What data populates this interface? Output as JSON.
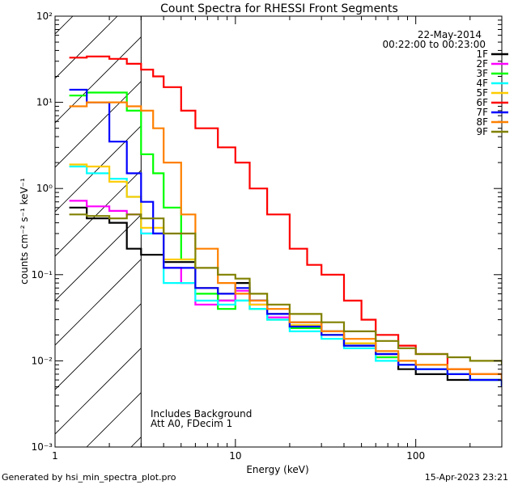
{
  "chart_data": {
    "type": "line",
    "title": "Count Spectra for RHESSI Front Segments",
    "xlabel": "Energy (keV)",
    "ylabel": "counts cm⁻² s⁻¹ keV⁻¹",
    "xscale": "log",
    "yscale": "log",
    "xlim": [
      1,
      300
    ],
    "ylim": [
      0.001,
      100
    ],
    "x_ticks": [
      {
        "value": 1,
        "label": "1"
      },
      {
        "value": 10,
        "label": "10"
      },
      {
        "value": 100,
        "label": "100"
      }
    ],
    "y_ticks": [
      {
        "value": 0.001,
        "label": "10⁻³"
      },
      {
        "value": 0.01,
        "label": "10⁻²"
      },
      {
        "value": 0.1,
        "label": "10⁻¹"
      },
      {
        "value": 1,
        "label": "10⁰"
      },
      {
        "value": 10,
        "label": "10¹"
      },
      {
        "value": 100,
        "label": "10²"
      }
    ],
    "date": "22-May-2014",
    "time_range": "00:22:00 to 00:23:00",
    "shaded_region_keV": [
      1,
      3
    ],
    "annotations": [
      "Includes Background",
      "Att A0, FDecim 1"
    ],
    "legend_position": "top-right",
    "series": [
      {
        "name": "1F",
        "color": "#000000",
        "points": [
          [
            1.2,
            0.6
          ],
          [
            1.5,
            0.45
          ],
          [
            2.0,
            0.4
          ],
          [
            2.5,
            0.2
          ],
          [
            3.0,
            0.17
          ],
          [
            4,
            0.14
          ],
          [
            6,
            0.07
          ],
          [
            8,
            0.05
          ],
          [
            10,
            0.08
          ],
          [
            12,
            0.05
          ],
          [
            15,
            0.035
          ],
          [
            20,
            0.028
          ],
          [
            30,
            0.022
          ],
          [
            40,
            0.016
          ],
          [
            60,
            0.012
          ],
          [
            80,
            0.008
          ],
          [
            100,
            0.007
          ],
          [
            150,
            0.006
          ],
          [
            200,
            0.006
          ],
          [
            300,
            0.005
          ]
        ]
      },
      {
        "name": "2F",
        "color": "#ff00ff",
        "points": [
          [
            1.2,
            0.72
          ],
          [
            1.5,
            0.62
          ],
          [
            2.0,
            0.55
          ],
          [
            2.5,
            0.5
          ],
          [
            3.0,
            0.3
          ],
          [
            4,
            0.12
          ],
          [
            5,
            0.08
          ],
          [
            6,
            0.045
          ],
          [
            8,
            0.05
          ],
          [
            10,
            0.065
          ],
          [
            12,
            0.045
          ],
          [
            15,
            0.032
          ],
          [
            20,
            0.025
          ],
          [
            30,
            0.02
          ],
          [
            40,
            0.015
          ],
          [
            60,
            0.011
          ],
          [
            80,
            0.009
          ],
          [
            100,
            0.008
          ],
          [
            150,
            0.007
          ],
          [
            200,
            0.006
          ],
          [
            300,
            0.005
          ]
        ]
      },
      {
        "name": "3F",
        "color": "#00ff00",
        "points": [
          [
            1.2,
            12
          ],
          [
            1.5,
            13
          ],
          [
            2.0,
            13
          ],
          [
            2.5,
            8
          ],
          [
            3.0,
            2.5
          ],
          [
            3.5,
            1.5
          ],
          [
            4,
            0.6
          ],
          [
            5,
            0.15
          ],
          [
            6,
            0.06
          ],
          [
            8,
            0.04
          ],
          [
            10,
            0.05
          ],
          [
            12,
            0.04
          ],
          [
            15,
            0.03
          ],
          [
            20,
            0.024
          ],
          [
            30,
            0.02
          ],
          [
            40,
            0.015
          ],
          [
            60,
            0.011
          ],
          [
            80,
            0.009
          ],
          [
            100,
            0.008
          ],
          [
            150,
            0.007
          ],
          [
            200,
            0.006
          ],
          [
            300,
            0.005
          ]
        ]
      },
      {
        "name": "4F",
        "color": "#00ffff",
        "points": [
          [
            1.2,
            1.8
          ],
          [
            1.5,
            1.5
          ],
          [
            2.0,
            1.3
          ],
          [
            2.5,
            0.8
          ],
          [
            3.0,
            0.3
          ],
          [
            4,
            0.08
          ],
          [
            6,
            0.05
          ],
          [
            8,
            0.045
          ],
          [
            10,
            0.05
          ],
          [
            12,
            0.04
          ],
          [
            15,
            0.03
          ],
          [
            20,
            0.022
          ],
          [
            30,
            0.018
          ],
          [
            40,
            0.014
          ],
          [
            60,
            0.01
          ],
          [
            80,
            0.009
          ],
          [
            100,
            0.008
          ],
          [
            150,
            0.007
          ],
          [
            200,
            0.006
          ],
          [
            300,
            0.005
          ]
        ]
      },
      {
        "name": "5F",
        "color": "#ffcc00",
        "points": [
          [
            1.2,
            1.9
          ],
          [
            1.5,
            1.8
          ],
          [
            2.0,
            1.2
          ],
          [
            2.5,
            0.8
          ],
          [
            3.0,
            0.35
          ],
          [
            4,
            0.15
          ],
          [
            6,
            0.07
          ],
          [
            8,
            0.06
          ],
          [
            10,
            0.06
          ],
          [
            12,
            0.045
          ],
          [
            15,
            0.035
          ],
          [
            20,
            0.026
          ],
          [
            30,
            0.02
          ],
          [
            40,
            0.016
          ],
          [
            60,
            0.012
          ],
          [
            80,
            0.01
          ],
          [
            100,
            0.009
          ],
          [
            150,
            0.008
          ],
          [
            200,
            0.007
          ],
          [
            300,
            0.006
          ]
        ]
      },
      {
        "name": "6F",
        "color": "#ff0000",
        "points": [
          [
            1.2,
            33
          ],
          [
            1.5,
            34
          ],
          [
            2.0,
            32
          ],
          [
            2.5,
            28
          ],
          [
            3.0,
            24
          ],
          [
            3.5,
            20
          ],
          [
            4,
            15
          ],
          [
            5,
            8
          ],
          [
            6,
            5
          ],
          [
            8,
            3
          ],
          [
            10,
            2
          ],
          [
            12,
            1
          ],
          [
            15,
            0.5
          ],
          [
            20,
            0.2
          ],
          [
            25,
            0.13
          ],
          [
            30,
            0.1
          ],
          [
            40,
            0.05
          ],
          [
            50,
            0.03
          ],
          [
            60,
            0.02
          ],
          [
            80,
            0.015
          ],
          [
            100,
            0.012
          ],
          [
            150,
            0.008
          ],
          [
            200,
            0.007
          ],
          [
            300,
            0.006
          ]
        ]
      },
      {
        "name": "7F",
        "color": "#0000ff",
        "points": [
          [
            1.2,
            14
          ],
          [
            1.5,
            10
          ],
          [
            2.0,
            3.5
          ],
          [
            2.5,
            1.5
          ],
          [
            3.0,
            0.7
          ],
          [
            3.5,
            0.3
          ],
          [
            4,
            0.12
          ],
          [
            6,
            0.07
          ],
          [
            8,
            0.06
          ],
          [
            10,
            0.07
          ],
          [
            12,
            0.05
          ],
          [
            15,
            0.035
          ],
          [
            20,
            0.025
          ],
          [
            30,
            0.02
          ],
          [
            40,
            0.015
          ],
          [
            60,
            0.012
          ],
          [
            80,
            0.009
          ],
          [
            100,
            0.008
          ],
          [
            150,
            0.007
          ],
          [
            200,
            0.006
          ],
          [
            300,
            0.005
          ]
        ]
      },
      {
        "name": "8F",
        "color": "#ff8000",
        "points": [
          [
            1.2,
            9
          ],
          [
            1.5,
            10
          ],
          [
            2.0,
            10
          ],
          [
            2.5,
            9
          ],
          [
            3.0,
            8
          ],
          [
            3.5,
            5
          ],
          [
            4,
            2
          ],
          [
            5,
            0.5
          ],
          [
            6,
            0.2
          ],
          [
            8,
            0.08
          ],
          [
            10,
            0.06
          ],
          [
            12,
            0.05
          ],
          [
            15,
            0.04
          ],
          [
            20,
            0.028
          ],
          [
            30,
            0.022
          ],
          [
            40,
            0.018
          ],
          [
            60,
            0.013
          ],
          [
            80,
            0.01
          ],
          [
            100,
            0.009
          ],
          [
            150,
            0.008
          ],
          [
            200,
            0.007
          ],
          [
            300,
            0.006
          ]
        ]
      },
      {
        "name": "9F",
        "color": "#808000",
        "points": [
          [
            1.2,
            0.5
          ],
          [
            1.5,
            0.48
          ],
          [
            2.0,
            0.45
          ],
          [
            2.5,
            0.5
          ],
          [
            3.0,
            0.45
          ],
          [
            4,
            0.3
          ],
          [
            6,
            0.12
          ],
          [
            8,
            0.1
          ],
          [
            10,
            0.09
          ],
          [
            12,
            0.06
          ],
          [
            15,
            0.045
          ],
          [
            20,
            0.035
          ],
          [
            30,
            0.028
          ],
          [
            40,
            0.022
          ],
          [
            60,
            0.017
          ],
          [
            80,
            0.014
          ],
          [
            100,
            0.012
          ],
          [
            150,
            0.011
          ],
          [
            200,
            0.01
          ],
          [
            300,
            0.009
          ]
        ]
      }
    ]
  },
  "footer": {
    "generated": "Generated by hsi_min_spectra_plot.pro",
    "timestamp": "15-Apr-2023 23:21"
  }
}
